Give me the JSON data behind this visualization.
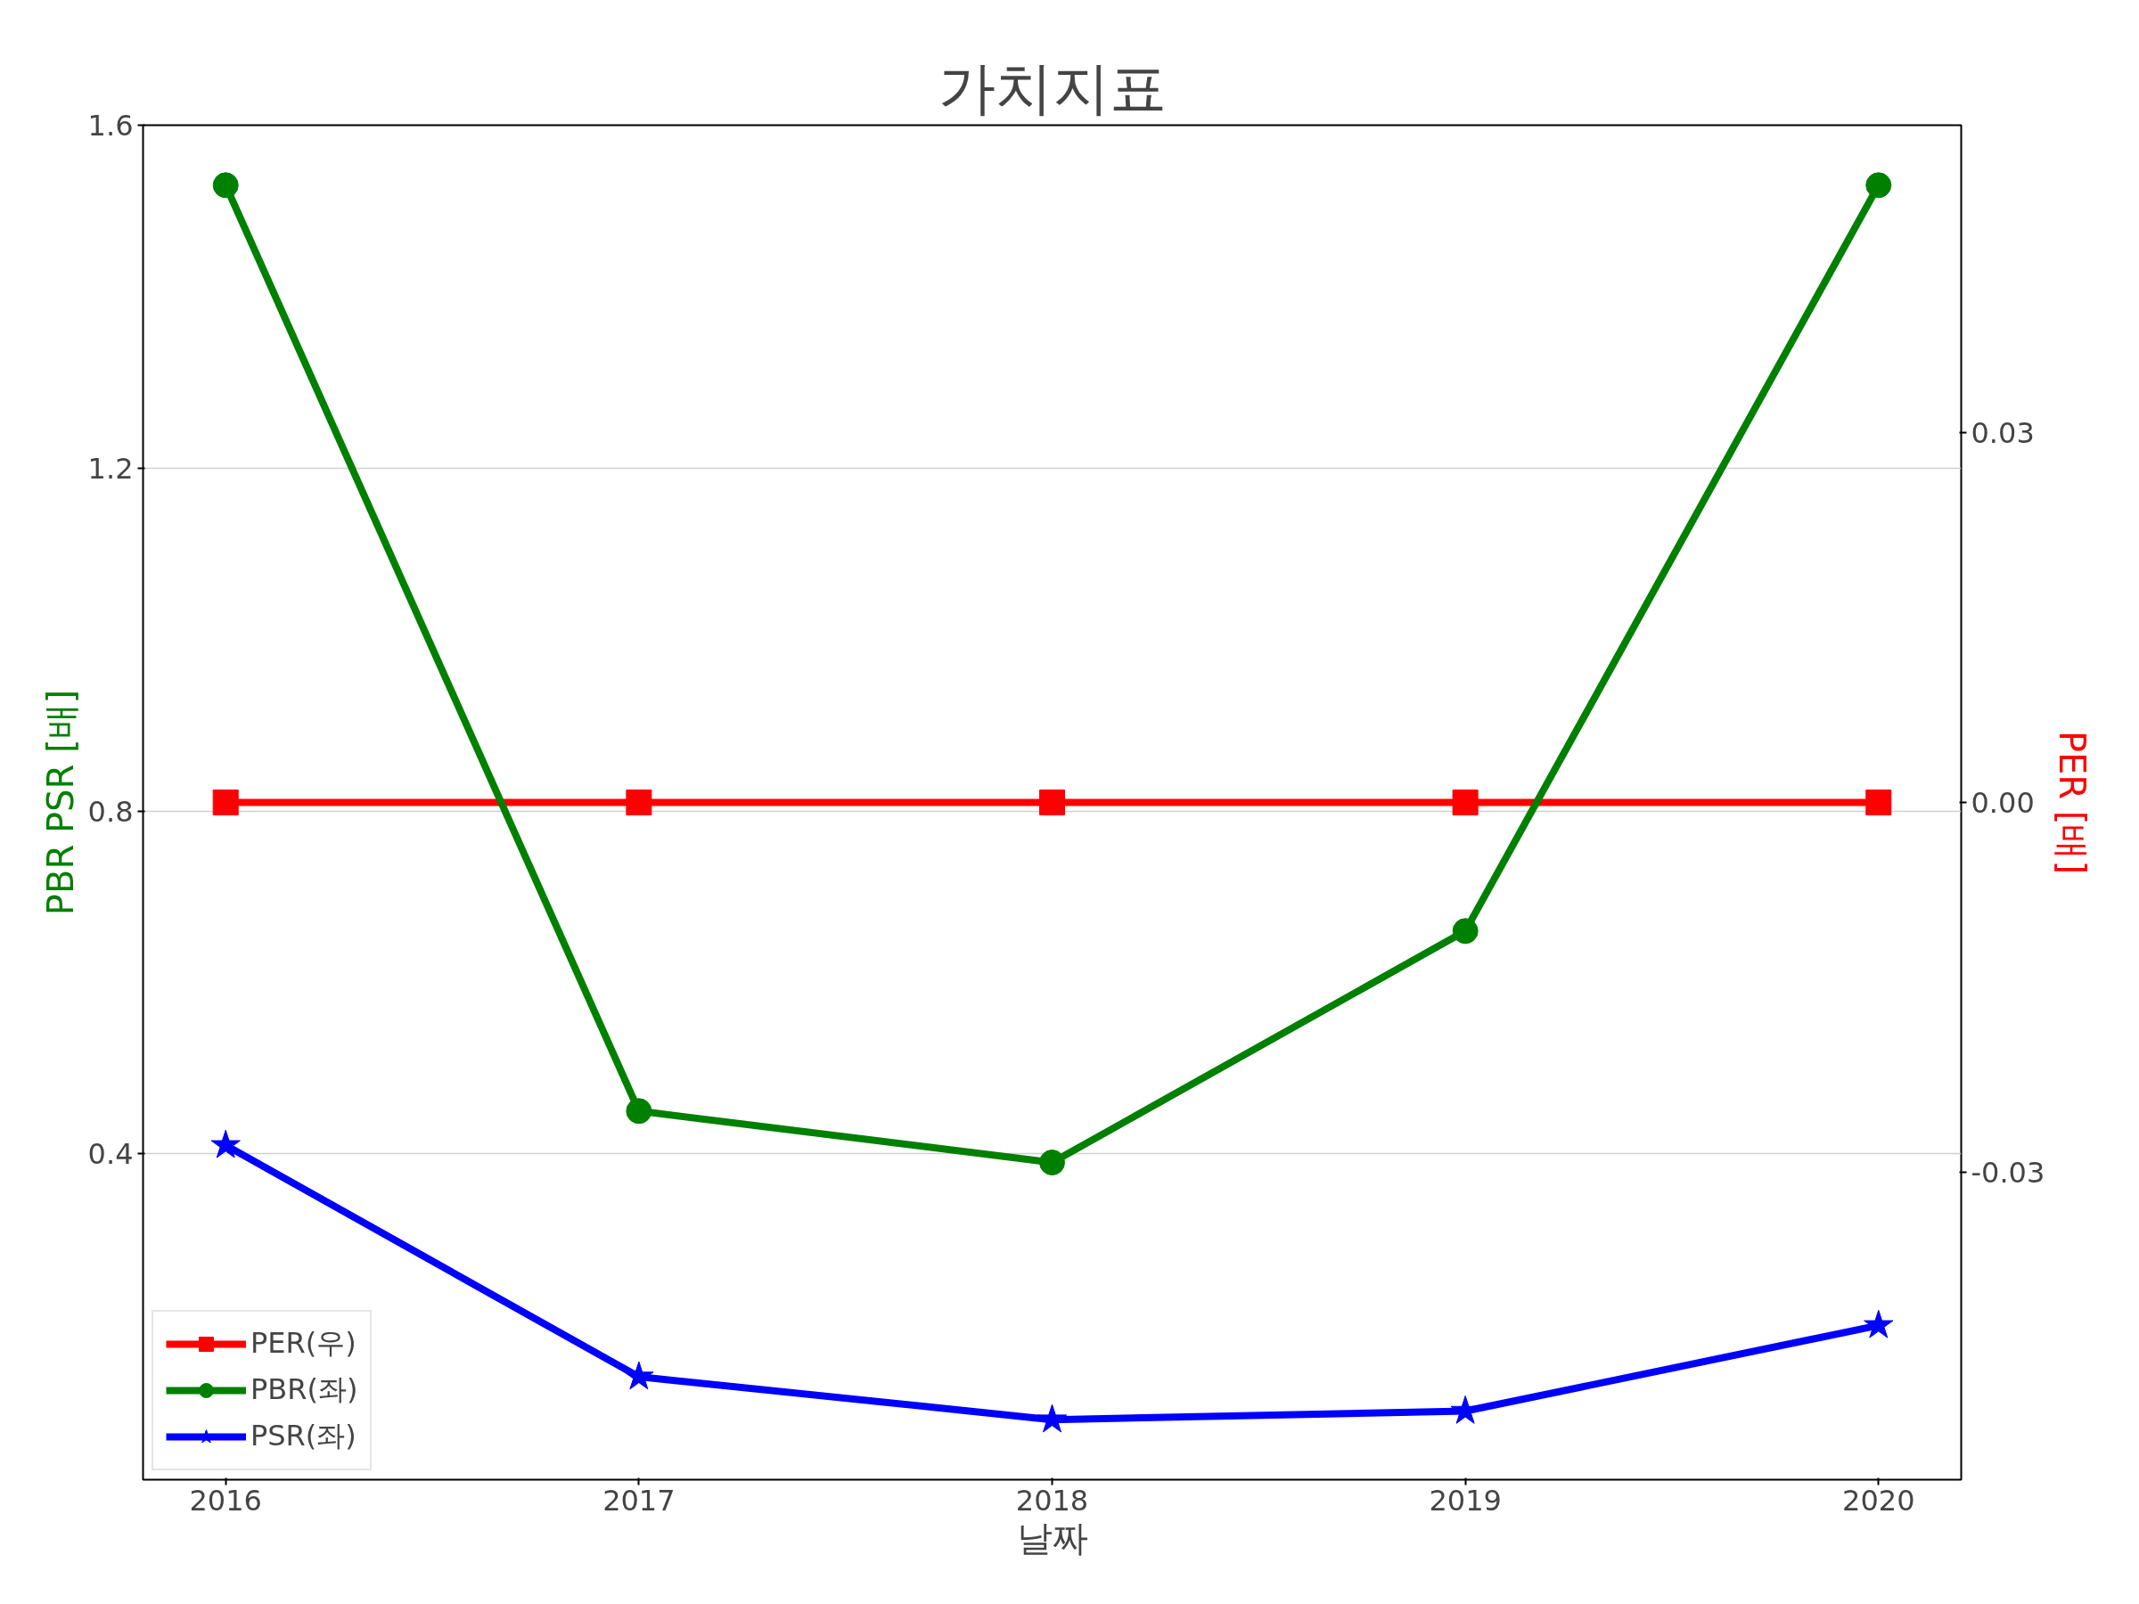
{
  "chart_data": {
    "type": "line",
    "title": "가치지표",
    "xlabel": "날짜",
    "ylabel": "PBR PSR [배]",
    "y2label": "PER [배]",
    "categories": [
      "2016",
      "2017",
      "2018",
      "2019",
      "2020"
    ],
    "series": [
      {
        "name": "PER(우)",
        "color": "#ff0000",
        "values": [
          0,
          0,
          0,
          0,
          0
        ],
        "axis": "y2",
        "marker": "square"
      },
      {
        "name": "PBR(좌)",
        "color": "#008000",
        "values": [
          1.53,
          0.45,
          0.39,
          0.66,
          1.53
        ],
        "marker": "circle"
      },
      {
        "name": "PSR(좌)",
        "color": "#0000ff",
        "values": [
          0.41,
          0.14,
          0.09,
          0.1,
          0.2
        ],
        "marker": "star"
      }
    ],
    "ylim": [
      0.02,
      1.6
    ],
    "yticks": [
      0.4,
      0.8,
      1.2,
      1.6
    ],
    "y2lim": [
      -0.055,
      0.055
    ],
    "y2ticks": [
      {
        "value": -0.03,
        "label": "-0.03"
      },
      {
        "value": 0,
        "label": "0.00"
      },
      {
        "value": 0.03,
        "label": "0.03"
      }
    ],
    "grid": "y",
    "legend": "bottom left",
    "line_style": "solid"
  }
}
